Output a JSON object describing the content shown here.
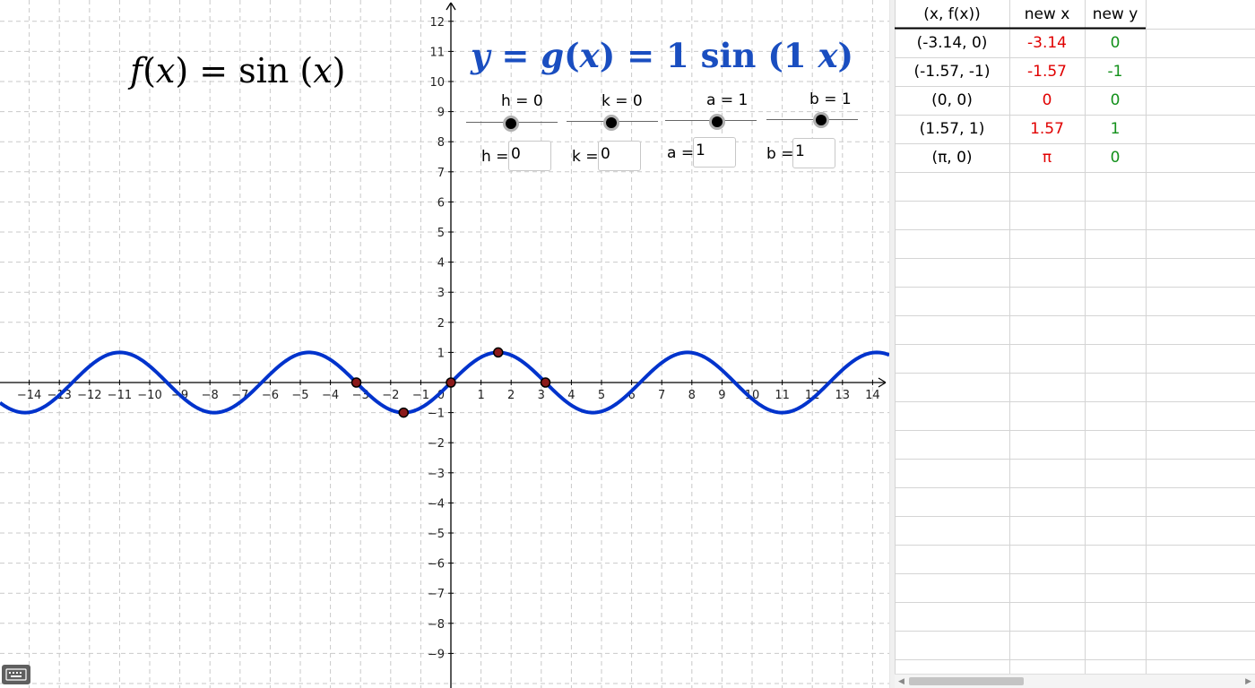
{
  "graph": {
    "x_range": [
      -15,
      14.6
    ],
    "y_range": [
      -10,
      12.5
    ],
    "x_ticks": [
      -14,
      -13,
      -12,
      -11,
      -10,
      -9,
      -8,
      -7,
      -6,
      -5,
      -4,
      -3,
      -2,
      -1,
      1,
      2,
      3,
      4,
      5,
      6,
      7,
      8,
      9,
      10,
      11,
      12,
      13,
      14
    ],
    "y_ticks": [
      -9,
      -8,
      -7,
      -6,
      -5,
      -4,
      -3,
      -2,
      -1,
      1,
      2,
      3,
      4,
      5,
      6,
      7,
      8,
      9,
      10,
      11,
      12
    ],
    "origin_label": "0",
    "curve_color": "#0033cc",
    "point_color": "#8b1a1a",
    "points": [
      {
        "x": -3.14,
        "y": 0
      },
      {
        "x": -1.57,
        "y": -1
      },
      {
        "x": 0,
        "y": 0
      },
      {
        "x": 1.57,
        "y": 1
      },
      {
        "x": 3.14,
        "y": 0
      }
    ],
    "formula_f": {
      "name": "f",
      "var": "x",
      "fn": "sin"
    },
    "formula_g": {
      "y": "y",
      "name": "g",
      "var": "x",
      "fn": "sin",
      "a": "1",
      "b": "1"
    }
  },
  "sliders": [
    {
      "name": "h",
      "label": "h = 0",
      "position": 0.5
    },
    {
      "name": "k",
      "label": "k = 0",
      "position": 0.5
    },
    {
      "name": "a",
      "label": "a = 1",
      "position": 0.55
    },
    {
      "name": "b",
      "label": "b = 1",
      "position": 0.58
    }
  ],
  "inputs": [
    {
      "name": "h",
      "label": "h =",
      "value": "0"
    },
    {
      "name": "k",
      "label": "k =",
      "value": "0"
    },
    {
      "name": "a",
      "label": "a =",
      "value": "1"
    },
    {
      "name": "b",
      "label": "b =",
      "value": "1"
    }
  ],
  "spreadsheet": {
    "headers": [
      "(x, f(x))",
      "new x",
      "new y"
    ],
    "rows": [
      [
        "(-3.14, 0)",
        "-3.14",
        "0"
      ],
      [
        "(-1.57, -1)",
        "-1.57",
        "-1"
      ],
      [
        "(0, 0)",
        "0",
        "0"
      ],
      [
        "(1.57, 1)",
        "1.57",
        "1"
      ],
      [
        "(π, 0)",
        "π",
        "0"
      ]
    ],
    "colors": {
      "new_x": "#e00000",
      "new_y": "#12901a"
    }
  },
  "icons": {
    "keyboard": "keyboard-icon"
  }
}
